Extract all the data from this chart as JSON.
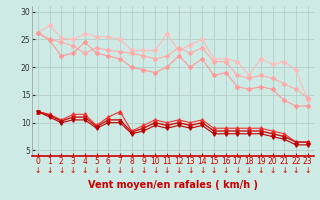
{
  "title": "",
  "xlabel": "Vent moyen/en rafales ( km/h )",
  "ylabel": "",
  "bg_color": "#cdeae4",
  "grid_color": "#b0c8c4",
  "xlim": [
    -0.5,
    23.5
  ],
  "ylim": [
    4,
    31
  ],
  "yticks": [
    5,
    10,
    15,
    20,
    25,
    30
  ],
  "xticks": [
    0,
    1,
    2,
    3,
    4,
    5,
    6,
    7,
    8,
    9,
    10,
    11,
    12,
    13,
    14,
    15,
    16,
    17,
    18,
    19,
    20,
    21,
    22,
    23
  ],
  "line1": {
    "x": [
      0,
      1,
      2,
      3,
      4,
      5,
      6,
      7,
      8,
      9,
      10,
      11,
      12,
      13,
      14,
      15,
      16,
      17,
      18,
      19,
      20,
      21,
      22,
      23
    ],
    "y": [
      26.2,
      27.5,
      25.2,
      25.0,
      26.0,
      25.5,
      25.5,
      25.0,
      23.0,
      23.0,
      23.0,
      26.0,
      23.0,
      24.0,
      25.0,
      21.5,
      21.5,
      21.0,
      18.5,
      21.5,
      20.5,
      21.0,
      19.5,
      14.0
    ],
    "color": "#ffbbbb",
    "marker": "D",
    "ms": 2.0,
    "lw": 0.8
  },
  "line2": {
    "x": [
      0,
      1,
      2,
      3,
      4,
      5,
      6,
      7,
      8,
      9,
      10,
      11,
      12,
      13,
      14,
      15,
      16,
      17,
      18,
      19,
      20,
      21,
      22,
      23
    ],
    "y": [
      26.2,
      25.0,
      24.5,
      23.8,
      22.5,
      23.5,
      23.0,
      22.8,
      22.5,
      22.0,
      21.5,
      22.0,
      23.5,
      22.5,
      23.5,
      21.0,
      21.0,
      18.5,
      18.0,
      18.5,
      18.0,
      17.0,
      16.0,
      14.5
    ],
    "color": "#ffaaaa",
    "marker": "D",
    "ms": 2.0,
    "lw": 0.8
  },
  "line3": {
    "x": [
      0,
      1,
      2,
      3,
      4,
      5,
      6,
      7,
      8,
      9,
      10,
      11,
      12,
      13,
      14,
      15,
      16,
      17,
      18,
      19,
      20,
      21,
      22,
      23
    ],
    "y": [
      26.2,
      24.8,
      22.0,
      22.5,
      24.5,
      22.5,
      22.0,
      21.5,
      20.0,
      19.5,
      19.0,
      20.0,
      22.0,
      20.0,
      21.5,
      18.5,
      19.0,
      16.5,
      16.0,
      16.5,
      16.0,
      14.0,
      13.0,
      13.0
    ],
    "color": "#ff9999",
    "marker": "D",
    "ms": 2.0,
    "lw": 0.8
  },
  "line4": {
    "x": [
      0,
      1,
      2,
      3,
      4,
      5,
      6,
      7,
      8,
      9,
      10,
      11,
      12,
      13,
      14,
      15,
      16,
      17,
      18,
      19,
      20,
      21,
      22,
      23
    ],
    "y": [
      12.0,
      11.5,
      10.5,
      11.5,
      11.5,
      9.5,
      11.0,
      12.0,
      8.5,
      9.5,
      10.5,
      10.0,
      10.5,
      10.0,
      10.5,
      9.0,
      9.0,
      9.0,
      9.0,
      9.0,
      8.5,
      8.0,
      6.5,
      6.5
    ],
    "color": "#ee3333",
    "marker": "^",
    "ms": 2.5,
    "lw": 0.8
  },
  "line5": {
    "x": [
      0,
      1,
      2,
      3,
      4,
      5,
      6,
      7,
      8,
      9,
      10,
      11,
      12,
      13,
      14,
      15,
      16,
      17,
      18,
      19,
      20,
      21,
      22,
      23
    ],
    "y": [
      12.0,
      11.3,
      10.3,
      11.0,
      11.0,
      9.3,
      10.5,
      10.5,
      8.3,
      9.0,
      10.0,
      9.5,
      10.0,
      9.5,
      10.0,
      8.5,
      8.5,
      8.5,
      8.5,
      8.5,
      8.0,
      7.5,
      6.5,
      6.5
    ],
    "color": "#cc1111",
    "marker": "s",
    "ms": 2.0,
    "lw": 1.0
  },
  "line6": {
    "x": [
      0,
      1,
      2,
      3,
      4,
      5,
      6,
      7,
      8,
      9,
      10,
      11,
      12,
      13,
      14,
      15,
      16,
      17,
      18,
      19,
      20,
      21,
      22,
      23
    ],
    "y": [
      12.0,
      11.0,
      10.0,
      10.5,
      10.5,
      9.0,
      10.0,
      10.0,
      8.0,
      8.5,
      9.5,
      9.0,
      9.5,
      9.0,
      9.5,
      8.0,
      8.0,
      8.0,
      8.0,
      8.0,
      7.5,
      7.0,
      6.0,
      6.0
    ],
    "color": "#bb0000",
    "marker": "v",
    "ms": 2.5,
    "lw": 0.8
  },
  "arrow_color": "#cc0000",
  "xlabel_color": "#cc0000",
  "xlabel_fontsize": 7,
  "tick_fontsize": 5.5
}
